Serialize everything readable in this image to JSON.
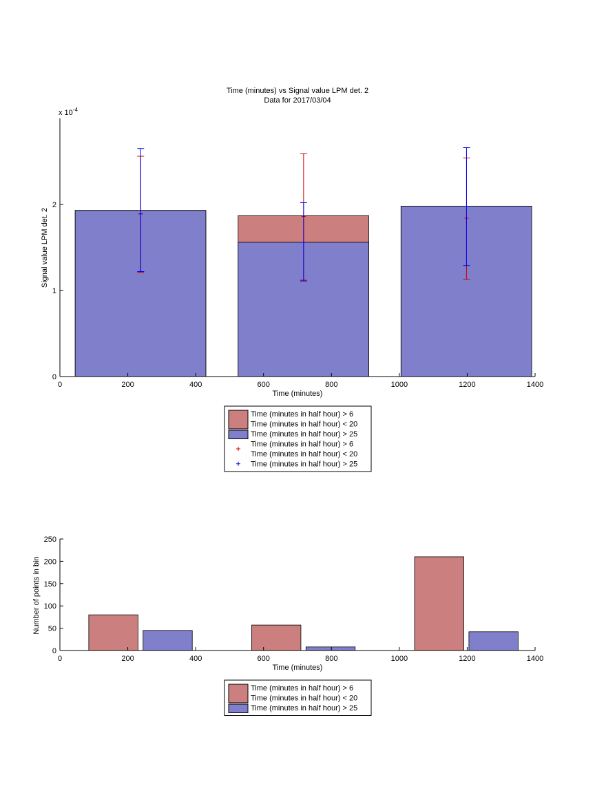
{
  "colors": {
    "red_fill": "#cc7f7f",
    "blue_fill": "#7f7fcc",
    "red_err": "#cc0000",
    "blue_err": "#0000ee"
  },
  "chart_data": [
    {
      "type": "bar",
      "title_line1": "Time (minutes) vs Signal value LPM det. 2",
      "title_line2": "Data for 2017/03/04",
      "xlabel": "Time (minutes)",
      "ylabel": "Signal value LPM det. 2",
      "exponent_label": "x 10",
      "exponent_power": "-4",
      "xlim": [
        0,
        1400
      ],
      "ylim": [
        0,
        3
      ],
      "xticks": [
        "0",
        "200",
        "400",
        "600",
        "800",
        "1000",
        "1200",
        "1400"
      ],
      "xtick_values": [
        0,
        200,
        400,
        600,
        800,
        1000,
        1200,
        1400
      ],
      "yticks": [
        "0",
        "1",
        "2"
      ],
      "ytick_values": [
        0,
        1,
        2
      ],
      "bars": [
        {
          "x0": 45,
          "x1": 430,
          "red": 1.93,
          "blue": 1.93
        },
        {
          "x0": 525,
          "x1": 910,
          "red": 1.87,
          "blue": 1.56
        },
        {
          "x0": 1005,
          "x1": 1390,
          "red": 1.98,
          "blue": 1.98
        }
      ],
      "errorbars": [
        {
          "series": "red",
          "x": 238,
          "low": 1.21,
          "high": 2.56,
          "mid": 1.89
        },
        {
          "series": "blue",
          "x": 238,
          "low": 1.22,
          "high": 2.65,
          "mid": 1.89
        },
        {
          "series": "red",
          "x": 718,
          "low": 1.12,
          "high": 2.59,
          "mid": 1.86
        },
        {
          "series": "blue",
          "x": 718,
          "low": 1.11,
          "high": 2.02,
          "mid": 1.56
        },
        {
          "series": "red",
          "x": 1198,
          "low": 1.13,
          "high": 2.54,
          "mid": 1.84
        },
        {
          "series": "blue",
          "x": 1198,
          "low": 1.29,
          "high": 2.66,
          "mid": 1.98
        }
      ],
      "legend": [
        {
          "kind": "patch",
          "series": "red",
          "line1": "Time (minutes in half hour) > 6",
          "line2": "Time (minutes in half hour) < 20"
        },
        {
          "kind": "patch",
          "series": "blue",
          "line1": "Time (minutes in half hour) > 25"
        },
        {
          "kind": "marker",
          "series": "red",
          "line1": "Time (minutes in half hour) > 6",
          "line2": "Time (minutes in half hour) < 20"
        },
        {
          "kind": "marker",
          "series": "blue",
          "line1": "Time (minutes in half hour) > 25"
        }
      ]
    },
    {
      "type": "bar",
      "xlabel": "Time (minutes)",
      "ylabel": "Number of points in bin",
      "xlim": [
        0,
        1400
      ],
      "ylim": [
        0,
        250
      ],
      "xticks": [
        "0",
        "200",
        "400",
        "600",
        "800",
        "1000",
        "1200",
        "1400"
      ],
      "xtick_values": [
        0,
        200,
        400,
        600,
        800,
        1000,
        1200,
        1400
      ],
      "yticks": [
        "0",
        "50",
        "100",
        "150",
        "200",
        "250"
      ],
      "ytick_values": [
        0,
        50,
        100,
        150,
        200,
        250
      ],
      "bars": [
        {
          "series": "red",
          "x0": 85,
          "x1": 230,
          "value": 80
        },
        {
          "series": "blue",
          "x0": 245,
          "x1": 390,
          "value": 45
        },
        {
          "series": "red",
          "x0": 565,
          "x1": 710,
          "value": 57
        },
        {
          "series": "blue",
          "x0": 725,
          "x1": 870,
          "value": 8
        },
        {
          "series": "red",
          "x0": 1045,
          "x1": 1190,
          "value": 210
        },
        {
          "series": "blue",
          "x0": 1205,
          "x1": 1350,
          "value": 42
        }
      ],
      "legend": [
        {
          "kind": "patch",
          "series": "red",
          "line1": "Time (minutes in half hour) > 6",
          "line2": "Time (minutes in half hour) < 20"
        },
        {
          "kind": "patch",
          "series": "blue",
          "line1": "Time (minutes in half hour) > 25"
        }
      ]
    }
  ]
}
